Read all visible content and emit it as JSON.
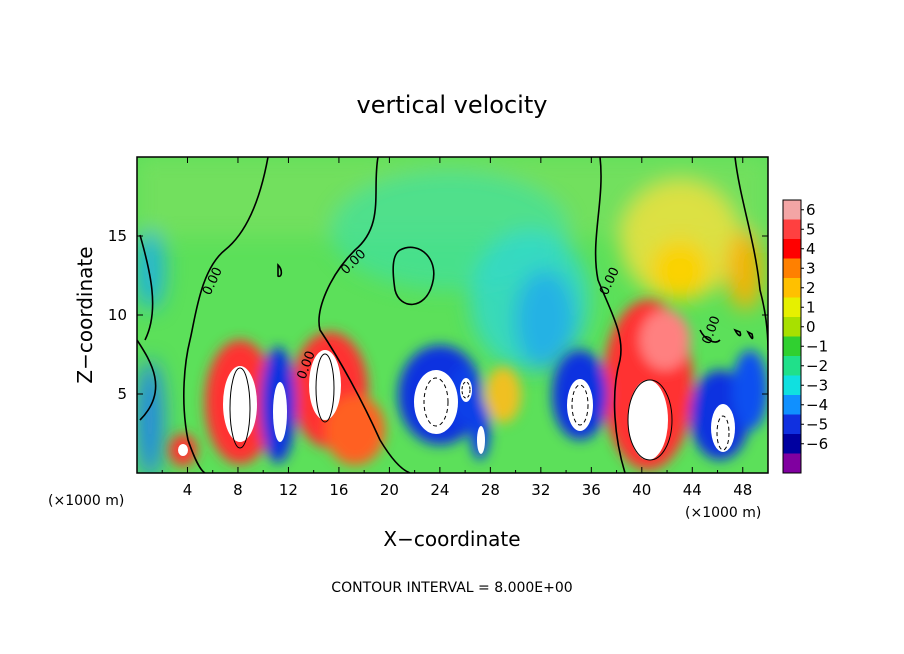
{
  "chart_data": {
    "type": "heatmap",
    "title": "vertical velocity",
    "xlabel": "X−coordinate",
    "ylabel": "Z−coordinate",
    "x_unit_left": "(×1000 m)",
    "x_unit_right": "(×1000 m)",
    "footer": "CONTOUR INTERVAL = 8.000E+00",
    "contour_label": "0.00",
    "xlim": [
      0,
      50
    ],
    "ylim": [
      0,
      20
    ],
    "xticks": [
      "4",
      "8",
      "12",
      "16",
      "20",
      "24",
      "28",
      "32",
      "36",
      "40",
      "44",
      "48"
    ],
    "yticks": [
      "5",
      "10",
      "15"
    ],
    "colorbar": {
      "levels": [
        "6",
        "5",
        "4",
        "3",
        "2",
        "1",
        "0",
        "−1",
        "−2",
        "−3",
        "−4",
        "−5",
        "−6"
      ],
      "range": [
        -6,
        6
      ],
      "colors": [
        "#f3a5a5",
        "#ff4040",
        "#ff0000",
        "#ff8000",
        "#ffc000",
        "#e6f000",
        "#a8e000",
        "#30d030",
        "#20e08a",
        "#10e0e0",
        "#1090ff",
        "#1030e0",
        "#0000a0",
        "#8000a0"
      ]
    },
    "features": [
      {
        "x": 8,
        "z": 4.5,
        "sign": "up",
        "peak": 6
      },
      {
        "x": 11,
        "z": 4.2,
        "sign": "down",
        "peak": -6
      },
      {
        "x": 15,
        "z": 5.5,
        "sign": "up",
        "peak": 6
      },
      {
        "x": 24,
        "z": 5.0,
        "sign": "down",
        "peak": -6
      },
      {
        "x": 35,
        "z": 5.0,
        "sign": "down",
        "peak": -6
      },
      {
        "x": 40.5,
        "z": 4.5,
        "sign": "up",
        "peak": 6
      },
      {
        "x": 46,
        "z": 3.5,
        "sign": "down",
        "peak": -6
      },
      {
        "x": 3.8,
        "z": 1.5,
        "sign": "up",
        "peak": 5
      },
      {
        "x": 30,
        "z": 4.0,
        "sign": "up",
        "peak": 2
      }
    ]
  }
}
